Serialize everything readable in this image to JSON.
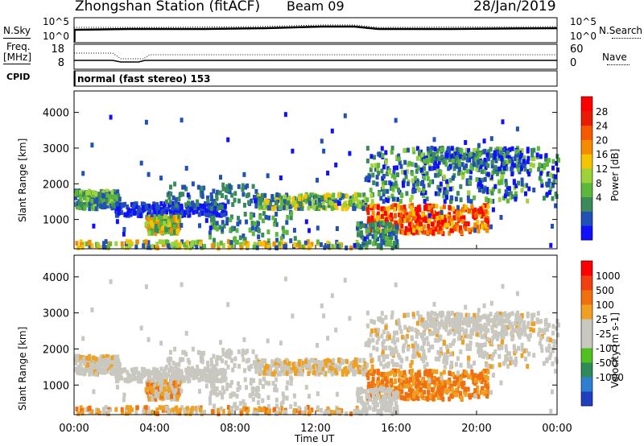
{
  "header": {
    "station": "Zhongshan Station (fitACF)",
    "beam": "Beam 09",
    "date": "28/Jan/2019"
  },
  "panels": {
    "nsky_label": "N.Sky",
    "nsearch_label": "N.Search",
    "nsky_ticks": [
      "10^5",
      "10^0"
    ],
    "nsearch_ticks": [
      "10^5",
      "10^0"
    ],
    "freq_label_1": "Freq.",
    "freq_label_2": "[MHz]",
    "freq_ticks": [
      "18",
      "8"
    ],
    "nave_label": "Nave",
    "nave_ticks": [
      "60",
      "0"
    ],
    "cpid_label": "CPID",
    "cpid_value": "normal (fast stereo) 153"
  },
  "chart_data": [
    {
      "type": "heatmap",
      "panel": "power",
      "ylabel": "Slant Range [km]",
      "ylim": [
        180,
        4600
      ],
      "yticks": [
        1000,
        2000,
        3000,
        4000
      ],
      "xlim": [
        0,
        24
      ],
      "colorbar_label": "Power [dB]",
      "colorbar_ticks": [
        "28",
        "24",
        "20",
        "16",
        "12",
        "8",
        "4"
      ],
      "colors": [
        "#1010ff",
        "#2050b8",
        "#3a8a5a",
        "#5cb83a",
        "#9ed23a",
        "#f5c400",
        "#f58c00",
        "#f55a00",
        "#e81c00",
        "#ff0000"
      ]
    },
    {
      "type": "heatmap",
      "panel": "velocity",
      "ylabel": "Slant Range [km]",
      "ylim": [
        180,
        4600
      ],
      "yticks": [
        1000,
        2000,
        3000,
        4000
      ],
      "xlim": [
        0,
        24
      ],
      "xlabel": "Time UT",
      "xticks": [
        "00:00",
        "04:00",
        "08:00",
        "12:00",
        "16:00",
        "20:00",
        "00:00"
      ],
      "colorbar_label": "Velocity [m s-1]",
      "colorbar_ticks": [
        "1000",
        "500",
        "100",
        "25",
        "-25",
        "-100",
        "-500",
        "-1000"
      ],
      "colors": [
        "#1f3fbf",
        "#2f7fd0",
        "#2e8b57",
        "#50c020",
        "#c8c8c0",
        "#c8c8c0",
        "#f0a020",
        "#f07010",
        "#f04010",
        "#ff0000"
      ]
    }
  ]
}
